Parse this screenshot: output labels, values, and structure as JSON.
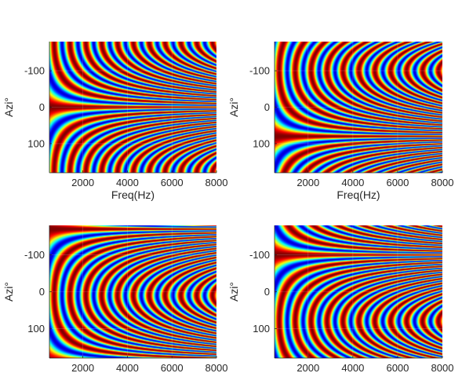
{
  "chart_data": [
    {
      "type": "heatmap",
      "position": "top-left",
      "title": "",
      "xlabel": "Freq(Hz)",
      "ylabel": "Azi°",
      "xlim": [
        500,
        8000
      ],
      "ylim": [
        -180,
        180
      ],
      "y_direction": "reversed",
      "xticks": [
        2000,
        4000,
        6000,
        8000
      ],
      "yticks": [
        -100,
        0,
        100
      ],
      "xtick_labels": [
        "2000",
        "4000",
        "6000",
        "8000"
      ],
      "ytick_labels": [
        "-100",
        "0",
        "100"
      ],
      "grid": true,
      "colormap": "jet",
      "pattern": {
        "center_azimuth": 0,
        "broadside_azimuths": [
          -90,
          90
        ]
      }
    },
    {
      "type": "heatmap",
      "position": "top-right",
      "title": "",
      "xlabel": "Freq(Hz)",
      "ylabel": "Azi°",
      "xlim": [
        500,
        8000
      ],
      "ylim": [
        -180,
        180
      ],
      "y_direction": "reversed",
      "xticks": [
        2000,
        4000,
        6000,
        8000
      ],
      "yticks": [
        -100,
        0,
        100
      ],
      "xtick_labels": [
        "2000",
        "4000",
        "6000",
        "8000"
      ],
      "ytick_labels": [
        "-100",
        "0",
        "100"
      ],
      "grid": true,
      "colormap": "jet",
      "pattern": {
        "center_azimuth": 80,
        "broadside_azimuths": [
          -10,
          170
        ]
      }
    },
    {
      "type": "heatmap",
      "position": "bottom-left",
      "title": "",
      "xlabel": "",
      "ylabel": "Azi°",
      "xlim": [
        500,
        8000
      ],
      "ylim": [
        -180,
        180
      ],
      "y_direction": "reversed",
      "xticks": [
        2000,
        4000,
        6000,
        8000
      ],
      "yticks": [
        -100,
        0,
        100
      ],
      "xtick_labels": [
        "2000",
        "4000",
        "6000",
        "8000"
      ],
      "ytick_labels": [
        "-100",
        "0",
        "100"
      ],
      "grid": true,
      "colormap": "jet",
      "pattern": {
        "center_azimuth": -170,
        "broadside_azimuths": [
          -80,
          100
        ]
      }
    },
    {
      "type": "heatmap",
      "position": "bottom-right",
      "title": "",
      "xlabel": "",
      "ylabel": "Azi°",
      "xlim": [
        500,
        8000
      ],
      "ylim": [
        -180,
        180
      ],
      "y_direction": "reversed",
      "xticks": [
        2000,
        4000,
        6000,
        8000
      ],
      "yticks": [
        -100,
        0,
        100
      ],
      "xtick_labels": [
        "2000",
        "4000",
        "6000",
        "8000"
      ],
      "ytick_labels": [
        "-100",
        "0",
        "100"
      ],
      "grid": true,
      "colormap": "jet",
      "pattern": {
        "center_azimuth": -100,
        "broadside_azimuths": [
          -10,
          170
        ]
      }
    }
  ]
}
